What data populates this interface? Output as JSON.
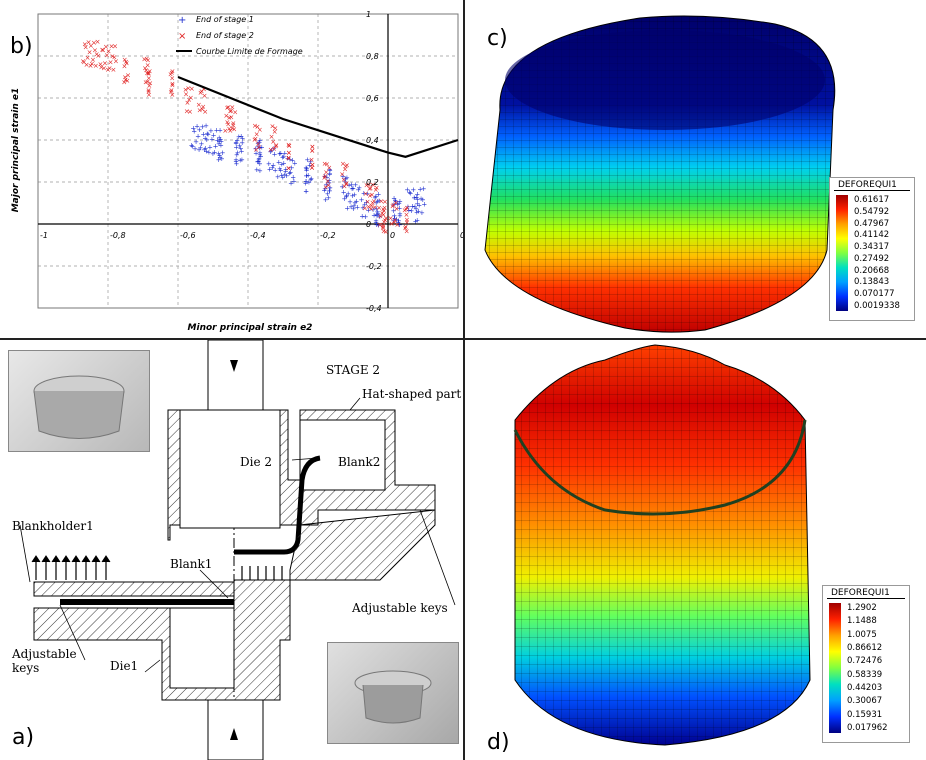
{
  "panels": {
    "a": "a)",
    "b": "b)",
    "c": "c)",
    "d": "d)"
  },
  "chart_data": {
    "type": "scatter",
    "xlabel": "Minor principal strain e2",
    "ylabel": "Major principal strain e1",
    "xlim": [
      -1,
      0.2
    ],
    "ylim": [
      -0.4,
      1
    ],
    "x_ticks": [
      "-1",
      "-0,8",
      "-0,6",
      "-0,4",
      "-0,2",
      "0",
      "0,2"
    ],
    "y_ticks": [
      "1",
      "0,8",
      "0,6",
      "0,4",
      "0,2",
      "0",
      "-0,2",
      "-0,4"
    ],
    "legend_position": "top-center",
    "grid": true,
    "series": [
      {
        "name": "End of stage 1",
        "marker": "+",
        "color": "#2030d0",
        "x": [
          -0.54,
          -0.5,
          -0.45,
          -0.4,
          -0.35,
          -0.3,
          -0.25,
          -0.2,
          -0.15,
          -0.1,
          -0.05,
          0.0,
          0.05,
          0.08
        ],
        "y": [
          0.4,
          0.38,
          0.35,
          0.33,
          0.3,
          0.27,
          0.24,
          0.2,
          0.16,
          0.12,
          0.08,
          0.04,
          0.06,
          0.1
        ]
      },
      {
        "name": "End of stage 2",
        "marker": "x",
        "color": "#e02020",
        "x": [
          -0.85,
          -0.8,
          -0.72,
          -0.65,
          -0.55,
          -0.45,
          -0.35,
          -0.25,
          -0.15,
          -0.05,
          0.0,
          0.02
        ],
        "y": [
          0.8,
          0.78,
          0.72,
          0.66,
          0.58,
          0.49,
          0.4,
          0.31,
          0.22,
          0.12,
          0.04,
          0.01
        ]
      },
      {
        "name": "Courbe Limite de Formage",
        "marker": "line",
        "color": "#000000",
        "x": [
          -0.6,
          -0.3,
          0.0,
          0.05,
          0.2
        ],
        "y": [
          0.7,
          0.5,
          0.34,
          0.32,
          0.4
        ]
      }
    ]
  },
  "contour_c": {
    "title": "DEFOREQUI1",
    "values": [
      "0.61617",
      "0.54792",
      "0.47967",
      "0.41142",
      "0.34317",
      "0.27492",
      "0.20668",
      "0.13843",
      "0.070177",
      "0.0019338"
    ]
  },
  "contour_d": {
    "title": "DEFOREQUI1",
    "values": [
      "1.2902",
      "1.1488",
      "1.0075",
      "0.86612",
      "0.72476",
      "0.58339",
      "0.44203",
      "0.30067",
      "0.15931",
      "0.017962"
    ]
  },
  "schematic": {
    "stage": "STAGE 2",
    "labels": {
      "hat_shaped_part": "Hat-shaped part",
      "die2": "Die 2",
      "blank2": "Blank2",
      "blankholder1": "Blankholder1",
      "blank1": "Blank1",
      "adjustable_keys_right": "Adjustable keys",
      "adjustable_keys_left_1": "Adjustable",
      "adjustable_keys_left_2": "keys",
      "die1": "Die1"
    }
  },
  "colors": {
    "jet": [
      "#00007f",
      "#0000ff",
      "#007fff",
      "#00ffff",
      "#7fff7f",
      "#ffff00",
      "#ff7f00",
      "#ff0000",
      "#7f0000"
    ]
  }
}
